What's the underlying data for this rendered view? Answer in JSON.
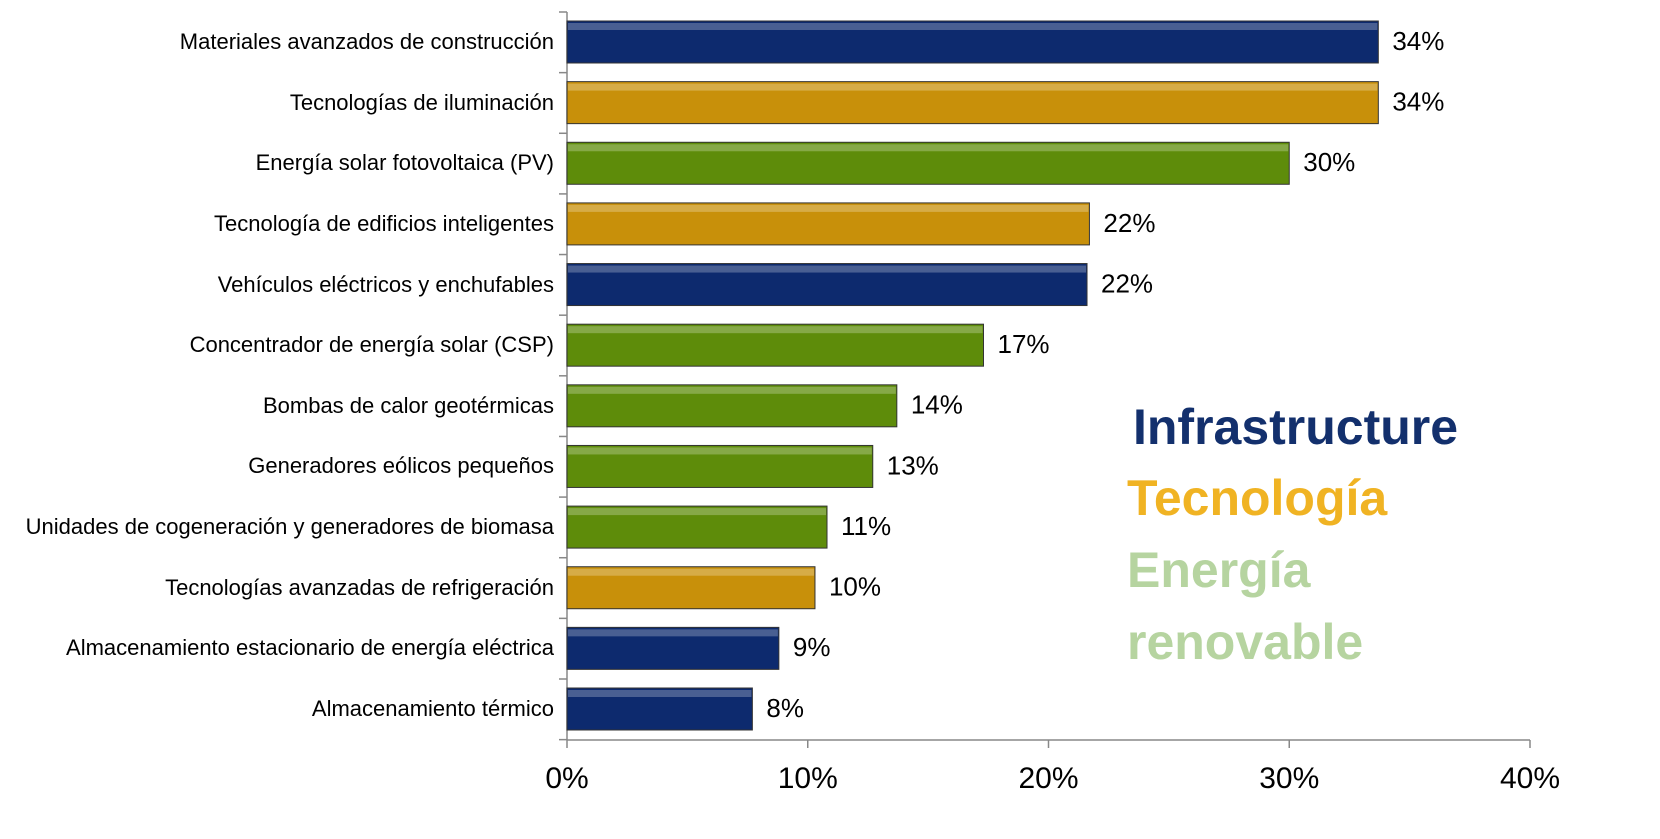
{
  "chart_data": {
    "type": "barh",
    "categories": [
      "Materiales avanzados de construcción",
      "Tecnologías de iluminación",
      "Energía solar fotovoltaica (PV)",
      "Tecnología de edificios inteligentes",
      "Vehículos eléctricos y enchufables",
      "Concentrador de energía solar (CSP)",
      "Bombas de calor geotérmicas",
      "Generadores eólicos pequeños",
      "Unidades de cogeneración y generadores de biomasa",
      "Tecnologías avanzadas de refrigeración",
      "Almacenamiento estacionario de energía eléctrica",
      "Almacenamiento térmico"
    ],
    "values": [
      33.7,
      33.7,
      30.0,
      21.7,
      21.6,
      17.3,
      13.7,
      12.7,
      10.8,
      10.3,
      8.8,
      7.7
    ],
    "value_labels": [
      "34%",
      "34%",
      "30%",
      "22%",
      "22%",
      "17%",
      "14%",
      "13%",
      "11%",
      "10%",
      "9%",
      "8%"
    ],
    "colors": [
      "#0d2a6e",
      "#c8900a",
      "#5e8c0a",
      "#c8900a",
      "#0d2a6e",
      "#5e8c0a",
      "#5e8c0a",
      "#5e8c0a",
      "#5e8c0a",
      "#c8900a",
      "#0d2a6e",
      "#0d2a6e"
    ],
    "xlim": [
      0,
      40
    ],
    "xticks": [
      {
        "value": 0,
        "label": "0%"
      },
      {
        "value": 10,
        "label": "10%"
      },
      {
        "value": 20,
        "label": "20%"
      },
      {
        "value": 30,
        "label": "30%"
      },
      {
        "value": 40,
        "label": "40%"
      }
    ],
    "legend": [
      {
        "name": "Infrastructure",
        "color": "#13306d"
      },
      {
        "name": "Tecnología",
        "color": "#f0b323"
      },
      {
        "name": "Energía renovable",
        "color": "#b6d4a0"
      }
    ]
  }
}
